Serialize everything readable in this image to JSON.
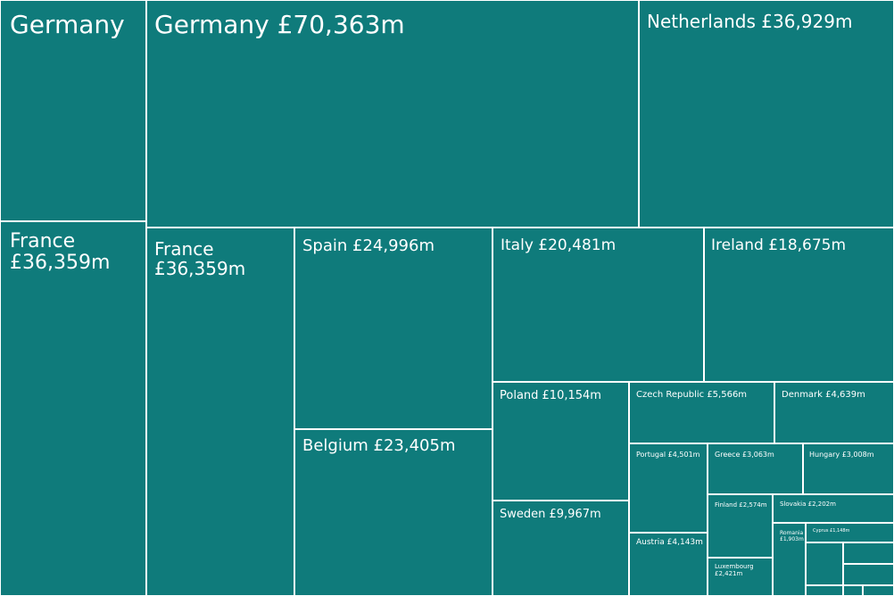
{
  "chart_data": {
    "type": "treemap",
    "units": "£m",
    "cells": [
      {
        "label": "Germany",
        "value": 70363
      },
      {
        "label": "France £36,359m",
        "value": 36359
      },
      {
        "label": "Germany £70,363m",
        "value": 70363
      },
      {
        "label": "Netherlands £36,929m",
        "value": 36929
      },
      {
        "label": "France £36,359m",
        "value": 36359
      },
      {
        "label": "Spain £24,996m",
        "value": 24996
      },
      {
        "label": "Belgium £23,405m",
        "value": 23405
      },
      {
        "label": "Italy £20,481m",
        "value": 20481
      },
      {
        "label": "Ireland £18,675m",
        "value": 18675
      },
      {
        "label": "Poland £10,154m",
        "value": 10154
      },
      {
        "label": "Sweden £9,967m",
        "value": 9967
      },
      {
        "label": "Czech Republic £5,566m",
        "value": 5566
      },
      {
        "label": "Denmark £4,639m",
        "value": 4639
      },
      {
        "label": "Portugal £4,501m",
        "value": 4501
      },
      {
        "label": "Austria £4,143m",
        "value": 4143
      },
      {
        "label": "Greece £3,063m",
        "value": 3063
      },
      {
        "label": "Hungary £3,008m",
        "value": 3008
      },
      {
        "label": "Finland £2,574m",
        "value": 2574
      },
      {
        "label": "Slovakia £2,202m",
        "value": 2202
      },
      {
        "label": "Luxembourg £2,421m",
        "value": 2421
      },
      {
        "label": "Romania £1,903m",
        "value": 1903
      },
      {
        "label": "Cyprus £1,148m",
        "value": 1148
      },
      {
        "label": "",
        "value": null
      },
      {
        "label": "",
        "value": null
      },
      {
        "label": "",
        "value": null
      },
      {
        "label": "",
        "value": null
      },
      {
        "label": "",
        "value": null
      },
      {
        "label": "",
        "value": null
      }
    ]
  },
  "colors": {
    "cell": "#0f7b7b",
    "border": "#ffffff",
    "text": "#ffffff"
  }
}
